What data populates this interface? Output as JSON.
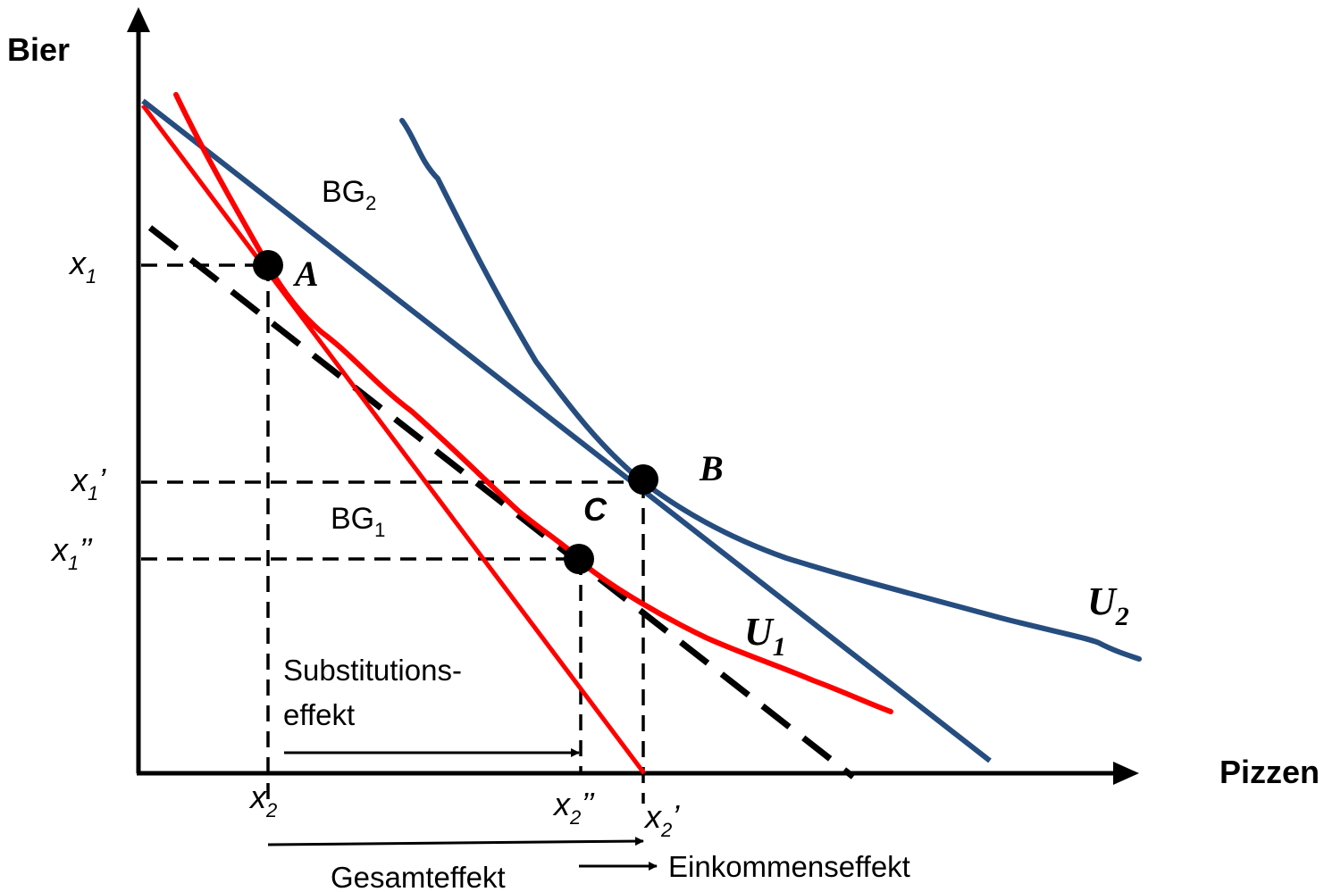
{
  "axes": {
    "y_label": "Bier",
    "x_label": "Pizzen"
  },
  "budget_lines": {
    "bg2": {
      "base": "BG",
      "sub": "2"
    },
    "bg1": {
      "base": "BG",
      "sub": "1"
    }
  },
  "curves": {
    "u1": {
      "base": "U",
      "sub": "1"
    },
    "u2": {
      "base": "U",
      "sub": "2"
    }
  },
  "points": {
    "a": "A",
    "b": "B",
    "c": "C"
  },
  "y_ticks": {
    "x1": {
      "base": "x",
      "sub": "1",
      "suffix": ""
    },
    "x1p": {
      "base": "x",
      "sub": "1",
      "suffix": "’"
    },
    "x1pp": {
      "base": "x",
      "sub": "1",
      "suffix": "’’"
    }
  },
  "x_ticks": {
    "x2": {
      "base": "x",
      "sub": "2",
      "suffix": ""
    },
    "x2pp": {
      "base": "x",
      "sub": "2",
      "suffix": "’’"
    },
    "x2p": {
      "base": "x",
      "sub": "2",
      "suffix": "’"
    }
  },
  "effects": {
    "substitution_line1": "Substitutions-",
    "substitution_line2": "effekt",
    "total": "Gesamteffekt",
    "income": "Einkommenseffekt"
  },
  "colors": {
    "red": "#ff0000",
    "blue": "#264d7f",
    "black": "#000000"
  }
}
